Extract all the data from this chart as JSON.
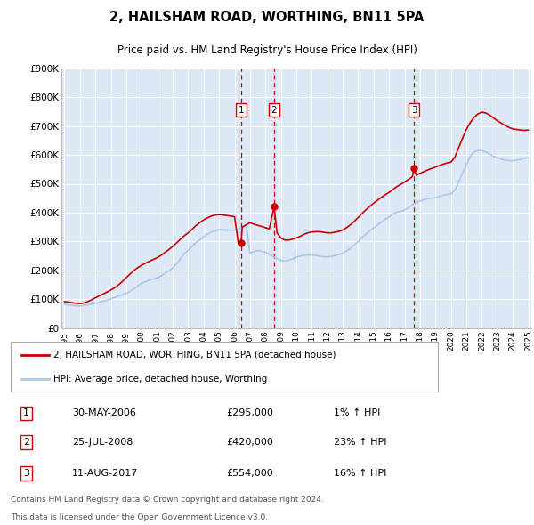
{
  "title": "2, HAILSHAM ROAD, WORTHING, BN11 5PA",
  "subtitle": "Price paid vs. HM Land Registry's House Price Index (HPI)",
  "ylim": [
    0,
    900000
  ],
  "yticks": [
    0,
    100000,
    200000,
    300000,
    400000,
    500000,
    600000,
    700000,
    800000,
    900000
  ],
  "ytick_labels": [
    "£0",
    "£100K",
    "£200K",
    "£300K",
    "£400K",
    "£500K",
    "£600K",
    "£700K",
    "£800K",
    "£900K"
  ],
  "background_color": "#ffffff",
  "plot_bg_color": "#dce8f5",
  "grid_color": "#ffffff",
  "hpi_color": "#aac8e8",
  "price_color": "#cc0000",
  "vline_color": "#cc0000",
  "legend_label_price": "2, HAILSHAM ROAD, WORTHING, BN11 5PA (detached house)",
  "legend_label_hpi": "HPI: Average price, detached house, Worthing",
  "transactions": [
    {
      "num": 1,
      "date": "30-MAY-2006",
      "price": 295000,
      "pct": "1%",
      "direction": "↑",
      "year": 2006.42
    },
    {
      "num": 2,
      "date": "25-JUL-2008",
      "price": 420000,
      "pct": "23%",
      "direction": "↑",
      "year": 2008.56
    },
    {
      "num": 3,
      "date": "11-AUG-2017",
      "price": 554000,
      "pct": "16%",
      "direction": "↑",
      "year": 2017.61
    }
  ],
  "footer_line1": "Contains HM Land Registry data © Crown copyright and database right 2024.",
  "footer_line2": "This data is licensed under the Open Government Licence v3.0.",
  "hpi_data_x": [
    1995.0,
    1995.25,
    1995.5,
    1995.75,
    1996.0,
    1996.25,
    1996.5,
    1996.75,
    1997.0,
    1997.25,
    1997.5,
    1997.75,
    1998.0,
    1998.25,
    1998.5,
    1998.75,
    1999.0,
    1999.25,
    1999.5,
    1999.75,
    2000.0,
    2000.25,
    2000.5,
    2000.75,
    2001.0,
    2001.25,
    2001.5,
    2001.75,
    2002.0,
    2002.25,
    2002.5,
    2002.75,
    2003.0,
    2003.25,
    2003.5,
    2003.75,
    2004.0,
    2004.25,
    2004.5,
    2004.75,
    2005.0,
    2005.25,
    2005.5,
    2005.75,
    2006.0,
    2006.25,
    2006.5,
    2006.75,
    2007.0,
    2007.25,
    2007.5,
    2007.75,
    2008.0,
    2008.25,
    2008.5,
    2008.75,
    2009.0,
    2009.25,
    2009.5,
    2009.75,
    2010.0,
    2010.25,
    2010.5,
    2010.75,
    2011.0,
    2011.25,
    2011.5,
    2011.75,
    2012.0,
    2012.25,
    2012.5,
    2012.75,
    2013.0,
    2013.25,
    2013.5,
    2013.75,
    2014.0,
    2014.25,
    2014.5,
    2014.75,
    2015.0,
    2015.25,
    2015.5,
    2015.75,
    2016.0,
    2016.25,
    2016.5,
    2016.75,
    2017.0,
    2017.25,
    2017.5,
    2017.75,
    2018.0,
    2018.25,
    2018.5,
    2018.75,
    2019.0,
    2019.25,
    2019.5,
    2019.75,
    2020.0,
    2020.25,
    2020.5,
    2020.75,
    2021.0,
    2021.25,
    2021.5,
    2021.75,
    2022.0,
    2022.25,
    2022.5,
    2022.75,
    2023.0,
    2023.25,
    2023.5,
    2023.75,
    2024.0,
    2024.25,
    2024.5,
    2024.75,
    2025.0
  ],
  "hpi_data_y": [
    82000,
    80000,
    79000,
    78000,
    77000,
    79000,
    81000,
    83000,
    86000,
    89000,
    93000,
    97000,
    102000,
    106000,
    111000,
    116000,
    121000,
    128000,
    136000,
    146000,
    156000,
    161000,
    166000,
    170000,
    174000,
    181000,
    190000,
    198000,
    208000,
    223000,
    240000,
    258000,
    270000,
    283000,
    296000,
    306000,
    316000,
    326000,
    333000,
    338000,
    341000,
    341000,
    340000,
    339000,
    340000,
    343000,
    348000,
    356000,
    260000,
    265000,
    268000,
    267000,
    263000,
    256000,
    248000,
    240000,
    235000,
    233000,
    235000,
    240000,
    245000,
    250000,
    252000,
    253000,
    253000,
    252000,
    249000,
    247000,
    247000,
    248000,
    251000,
    255000,
    260000,
    267000,
    277000,
    288000,
    300000,
    313000,
    325000,
    337000,
    347000,
    358000,
    368000,
    377000,
    385000,
    395000,
    402000,
    405000,
    409000,
    417000,
    427000,
    435000,
    440000,
    445000,
    448000,
    450000,
    452000,
    456000,
    460000,
    463000,
    465000,
    477000,
    505000,
    537000,
    565000,
    595000,
    610000,
    615000,
    615000,
    610000,
    603000,
    595000,
    590000,
    585000,
    582000,
    580000,
    580000,
    582000,
    585000,
    588000,
    590000
  ],
  "price_data_x": [
    1995.0,
    1995.25,
    1995.5,
    1995.75,
    1996.0,
    1996.25,
    1996.5,
    1996.75,
    1997.0,
    1997.25,
    1997.5,
    1997.75,
    1998.0,
    1998.25,
    1998.5,
    1998.75,
    1999.0,
    1999.25,
    1999.5,
    1999.75,
    2000.0,
    2000.25,
    2000.5,
    2000.75,
    2001.0,
    2001.25,
    2001.5,
    2001.75,
    2002.0,
    2002.25,
    2002.5,
    2002.75,
    2003.0,
    2003.25,
    2003.5,
    2003.75,
    2004.0,
    2004.25,
    2004.5,
    2004.75,
    2005.0,
    2005.25,
    2005.5,
    2005.75,
    2006.0,
    2006.25,
    2006.42,
    2006.5,
    2006.75,
    2007.0,
    2007.25,
    2007.5,
    2007.75,
    2008.0,
    2008.25,
    2008.56,
    2008.75,
    2009.0,
    2009.25,
    2009.5,
    2009.75,
    2010.0,
    2010.25,
    2010.5,
    2010.75,
    2011.0,
    2011.25,
    2011.5,
    2011.75,
    2012.0,
    2012.25,
    2012.5,
    2012.75,
    2013.0,
    2013.25,
    2013.5,
    2013.75,
    2014.0,
    2014.25,
    2014.5,
    2014.75,
    2015.0,
    2015.25,
    2015.5,
    2015.75,
    2016.0,
    2016.25,
    2016.5,
    2016.75,
    2017.0,
    2017.25,
    2017.5,
    2017.61,
    2017.75,
    2018.0,
    2018.25,
    2018.5,
    2018.75,
    2019.0,
    2019.25,
    2019.5,
    2019.75,
    2020.0,
    2020.25,
    2020.5,
    2020.75,
    2021.0,
    2021.25,
    2021.5,
    2021.75,
    2022.0,
    2022.25,
    2022.5,
    2022.75,
    2023.0,
    2023.25,
    2023.5,
    2023.75,
    2024.0,
    2024.25,
    2024.5,
    2024.75,
    2025.0
  ],
  "price_data_y": [
    92000,
    90000,
    88000,
    86000,
    85000,
    87000,
    92000,
    98000,
    105000,
    112000,
    118000,
    125000,
    132000,
    140000,
    150000,
    162000,
    175000,
    188000,
    200000,
    210000,
    218000,
    225000,
    232000,
    238000,
    244000,
    252000,
    262000,
    272000,
    283000,
    295000,
    308000,
    320000,
    330000,
    342000,
    355000,
    365000,
    375000,
    382000,
    388000,
    392000,
    393000,
    392000,
    390000,
    388000,
    386000,
    292000,
    295000,
    350000,
    358000,
    365000,
    360000,
    356000,
    352000,
    348000,
    344000,
    420000,
    330000,
    312000,
    305000,
    305000,
    308000,
    312000,
    318000,
    325000,
    330000,
    333000,
    334000,
    334000,
    332000,
    330000,
    330000,
    332000,
    335000,
    340000,
    348000,
    358000,
    370000,
    383000,
    397000,
    410000,
    422000,
    433000,
    443000,
    453000,
    462000,
    470000,
    480000,
    490000,
    498000,
    506000,
    515000,
    524000,
    554000,
    530000,
    536000,
    542000,
    548000,
    553000,
    558000,
    563000,
    568000,
    572000,
    575000,
    592000,
    625000,
    658000,
    688000,
    712000,
    730000,
    742000,
    748000,
    745000,
    738000,
    728000,
    718000,
    710000,
    702000,
    695000,
    690000,
    688000,
    686000,
    685000,
    686000
  ]
}
